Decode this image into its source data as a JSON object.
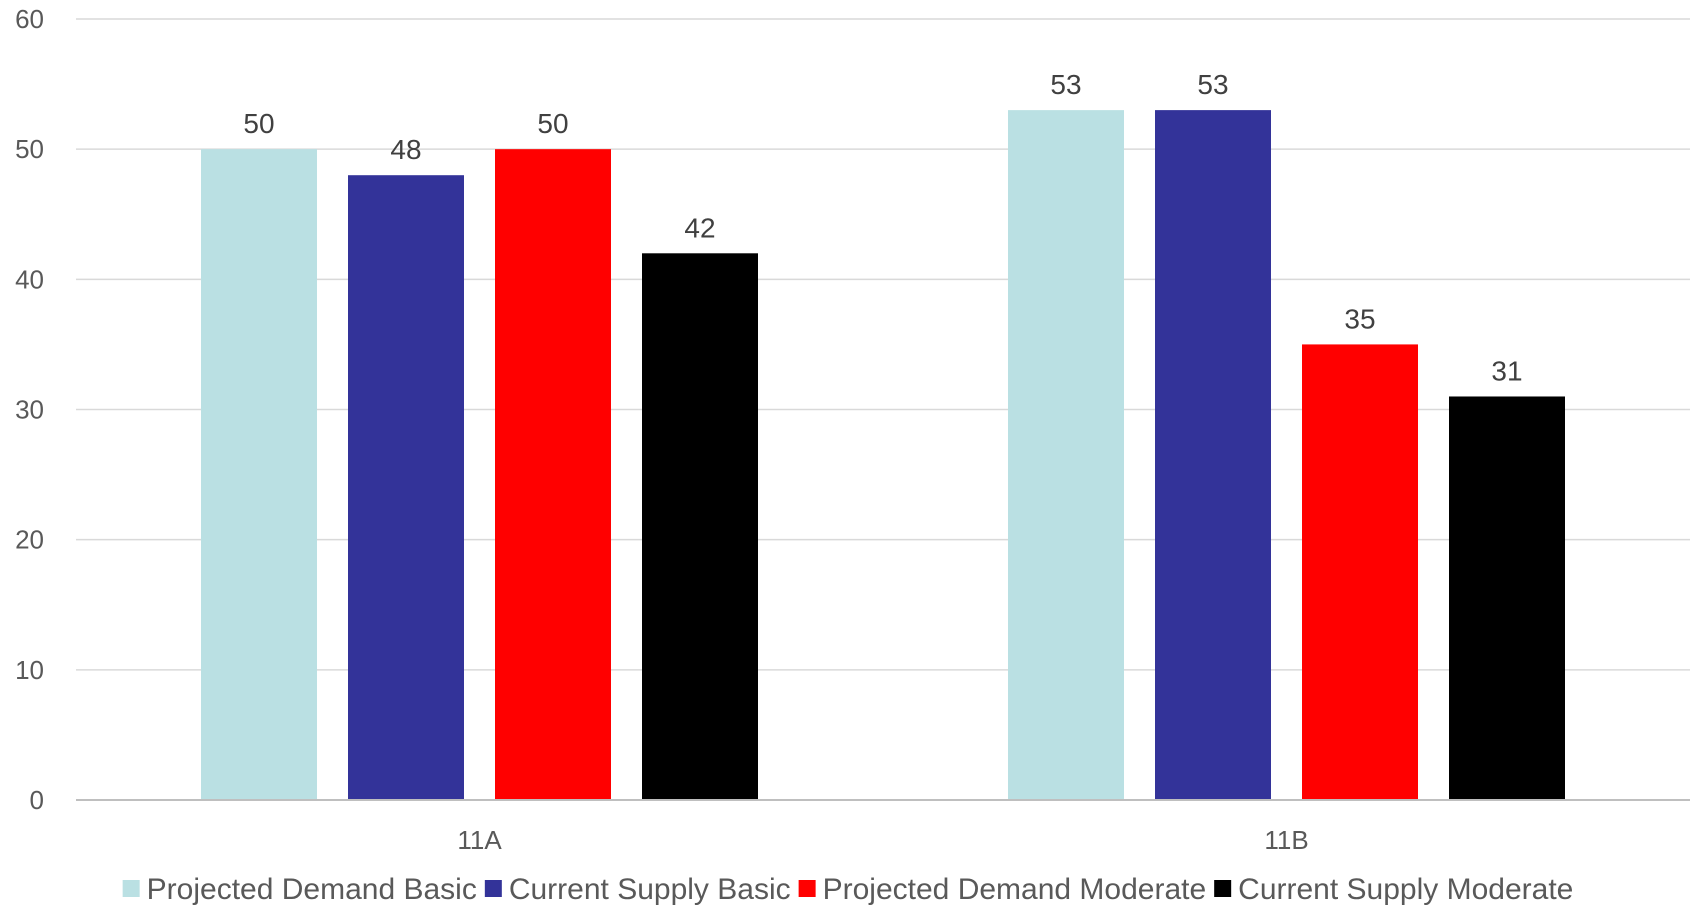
{
  "chart_data": {
    "type": "bar",
    "categories": [
      "11A",
      "11B"
    ],
    "series": [
      {
        "name": "Projected Demand Basic",
        "color": "#bae0e3",
        "values": [
          50,
          53
        ]
      },
      {
        "name": "Current Supply Basic",
        "color": "#333399",
        "values": [
          48,
          53
        ]
      },
      {
        "name": "Projected Demand Moderate",
        "color": "#ff0000",
        "values": [
          50,
          35
        ]
      },
      {
        "name": "Current Supply Moderate",
        "color": "#000000",
        "values": [
          42,
          31
        ]
      }
    ],
    "yticks": [
      "0",
      "10",
      "20",
      "30",
      "40",
      "50",
      "60"
    ],
    "ylim": [
      0,
      60
    ],
    "grid": true,
    "legend_position": "bottom",
    "data_labels": true,
    "title": "",
    "xlabel": "",
    "ylabel": ""
  }
}
